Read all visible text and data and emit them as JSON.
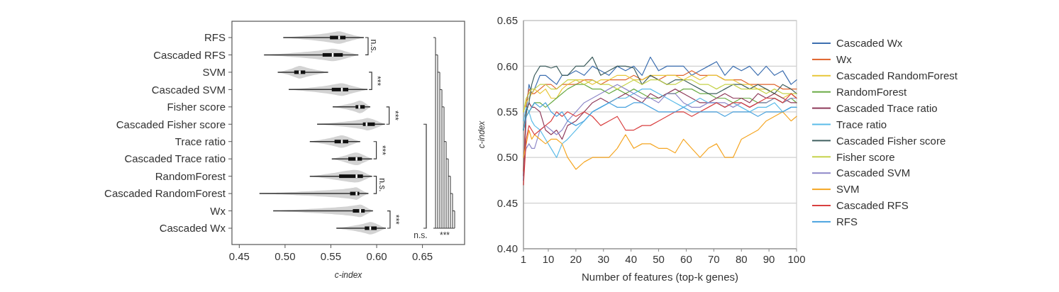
{
  "chart_data": [
    {
      "type": "box",
      "orientation": "horizontal",
      "xlabel": "c-index",
      "categories": [
        "RFS",
        "Cascaded RFS",
        "SVM",
        "Cascaded SVM",
        "Fisher score",
        "Cascaded Fisher score",
        "Trace ratio",
        "Cascaded Trace ratio",
        "RandomForest",
        "Cascaded RandomForest",
        "Wx",
        "Cascaded Wx"
      ],
      "boxes": [
        {
          "low": 0.498,
          "q1": 0.549,
          "median": 0.559,
          "q3": 0.566,
          "high": 0.586
        },
        {
          "low": 0.477,
          "q1": 0.541,
          "median": 0.552,
          "q3": 0.563,
          "high": 0.58
        },
        {
          "low": 0.492,
          "q1": 0.51,
          "median": 0.516,
          "q3": 0.522,
          "high": 0.547
        },
        {
          "low": 0.504,
          "q1": 0.551,
          "median": 0.562,
          "q3": 0.569,
          "high": 0.59
        },
        {
          "low": 0.552,
          "q1": 0.577,
          "median": 0.581,
          "q3": 0.587,
          "high": 0.593
        },
        {
          "low": 0.535,
          "q1": 0.585,
          "median": 0.589,
          "q3": 0.598,
          "high": 0.609
        },
        {
          "low": 0.527,
          "q1": 0.554,
          "median": 0.562,
          "q3": 0.569,
          "high": 0.582
        },
        {
          "low": 0.551,
          "q1": 0.569,
          "median": 0.578,
          "q3": 0.584,
          "high": 0.595
        },
        {
          "low": 0.527,
          "q1": 0.559,
          "median": 0.578,
          "q3": 0.585,
          "high": 0.595
        },
        {
          "low": 0.472,
          "q1": 0.571,
          "median": 0.578,
          "q3": 0.581,
          "high": 0.591
        },
        {
          "low": 0.487,
          "q1": 0.574,
          "median": 0.582,
          "q3": 0.587,
          "high": 0.596
        },
        {
          "low": 0.556,
          "q1": 0.587,
          "median": 0.593,
          "q3": 0.6,
          "high": 0.61
        }
      ],
      "color": "#111111",
      "xlim": [
        0.442,
        0.696
      ],
      "xticks": [
        0.45,
        {
          "value": 0.5,
          "label": "0.50"
        },
        0.55,
        {
          "value": 0.6,
          "label": "0.60"
        },
        0.65
      ],
      "annotations": [
        "n.s.",
        "***",
        "***",
        "***",
        "n.s.",
        "***",
        "n.s.",
        "***"
      ]
    },
    {
      "type": "line",
      "xlabel": "Number of features (top-k genes)",
      "ylabel": "c-index",
      "legend": "right",
      "grid": "y",
      "x": [
        1,
        2,
        3,
        4,
        5,
        7,
        9,
        11,
        13,
        15,
        17,
        20,
        23,
        26,
        29,
        32,
        35,
        38,
        41,
        44,
        47,
        50,
        53,
        56,
        59,
        62,
        65,
        68,
        71,
        74,
        77,
        80,
        83,
        86,
        89,
        92,
        95,
        98,
        100
      ],
      "xlim": [
        1,
        100
      ],
      "xticks": [
        1,
        10,
        20,
        30,
        40,
        50,
        60,
        70,
        80,
        90,
        100
      ],
      "ylim": [
        0.4,
        0.65
      ],
      "yticks": [
        {
          "value": 0.4,
          "label": "0.40"
        },
        0.45,
        {
          "value": 0.5,
          "label": "0.50"
        },
        0.55,
        {
          "value": 0.6,
          "label": "0.60"
        },
        0.65
      ],
      "series": [
        {
          "name": "Cascaded Wx",
          "color": "#3d6fb0",
          "values": [
            0.475,
            0.55,
            0.58,
            0.57,
            0.575,
            0.59,
            0.59,
            0.585,
            0.58,
            0.59,
            0.59,
            0.595,
            0.59,
            0.6,
            0.595,
            0.59,
            0.6,
            0.595,
            0.6,
            0.59,
            0.61,
            0.595,
            0.6,
            0.6,
            0.6,
            0.59,
            0.595,
            0.6,
            0.605,
            0.59,
            0.6,
            0.595,
            0.6,
            0.59,
            0.6,
            0.59,
            0.595,
            0.58,
            0.585
          ]
        },
        {
          "name": "Wx",
          "color": "#e0622a",
          "values": [
            0.485,
            0.56,
            0.575,
            0.57,
            0.57,
            0.575,
            0.58,
            0.58,
            0.575,
            0.58,
            0.58,
            0.58,
            0.585,
            0.585,
            0.58,
            0.585,
            0.585,
            0.585,
            0.59,
            0.585,
            0.59,
            0.585,
            0.59,
            0.59,
            0.59,
            0.595,
            0.59,
            0.59,
            0.59,
            0.585,
            0.585,
            0.585,
            0.58,
            0.58,
            0.58,
            0.58,
            0.575,
            0.575,
            0.575
          ]
        },
        {
          "name": "Cascaded RandomForest",
          "color": "#e8c73a",
          "values": [
            0.55,
            0.56,
            0.565,
            0.57,
            0.575,
            0.57,
            0.575,
            0.565,
            0.565,
            0.575,
            0.58,
            0.585,
            0.585,
            0.58,
            0.585,
            0.585,
            0.59,
            0.59,
            0.585,
            0.585,
            0.59,
            0.59,
            0.59,
            0.59,
            0.585,
            0.59,
            0.585,
            0.59,
            0.59,
            0.585,
            0.585,
            0.58,
            0.58,
            0.575,
            0.575,
            0.57,
            0.565,
            0.57,
            0.565
          ]
        },
        {
          "name": "RandomForest",
          "color": "#6aab45",
          "values": [
            0.53,
            0.545,
            0.55,
            0.555,
            0.56,
            0.56,
            0.555,
            0.56,
            0.565,
            0.57,
            0.575,
            0.58,
            0.58,
            0.575,
            0.575,
            0.57,
            0.575,
            0.57,
            0.575,
            0.57,
            0.565,
            0.565,
            0.57,
            0.57,
            0.575,
            0.575,
            0.57,
            0.57,
            0.565,
            0.565,
            0.56,
            0.565,
            0.565,
            0.56,
            0.56,
            0.565,
            0.56,
            0.565,
            0.56
          ]
        },
        {
          "name": "Cascaded Trace ratio",
          "color": "#8e3a5a",
          "values": [
            0.48,
            0.55,
            0.56,
            0.555,
            0.555,
            0.55,
            0.53,
            0.525,
            0.53,
            0.52,
            0.535,
            0.54,
            0.55,
            0.56,
            0.565,
            0.56,
            0.565,
            0.57,
            0.565,
            0.56,
            0.57,
            0.565,
            0.57,
            0.575,
            0.57,
            0.565,
            0.56,
            0.56,
            0.565,
            0.57,
            0.565,
            0.565,
            0.56,
            0.57,
            0.565,
            0.57,
            0.565,
            0.56,
            0.56
          ]
        },
        {
          "name": "Trace ratio",
          "color": "#5bbbe8",
          "values": [
            0.54,
            0.555,
            0.55,
            0.54,
            0.535,
            0.53,
            0.52,
            0.51,
            0.5,
            0.515,
            0.52,
            0.53,
            0.54,
            0.55,
            0.555,
            0.56,
            0.565,
            0.565,
            0.57,
            0.575,
            0.575,
            0.57,
            0.565,
            0.56,
            0.555,
            0.56,
            0.565,
            0.56,
            0.56,
            0.555,
            0.56,
            0.555,
            0.55,
            0.555,
            0.555,
            0.56,
            0.55,
            0.555,
            0.555
          ]
        },
        {
          "name": "Cascaded Fisher score",
          "color": "#3f5f5f",
          "values": [
            0.53,
            0.55,
            0.56,
            0.58,
            0.59,
            0.6,
            0.6,
            0.598,
            0.6,
            0.59,
            0.59,
            0.6,
            0.6,
            0.61,
            0.59,
            0.595,
            0.6,
            0.6,
            0.598,
            0.58,
            0.59,
            0.585,
            0.58,
            0.585,
            0.585,
            0.58,
            0.575,
            0.57,
            0.57,
            0.575,
            0.58,
            0.58,
            0.575,
            0.58,
            0.575,
            0.57,
            0.58,
            0.575,
            0.57
          ]
        },
        {
          "name": "Fisher score",
          "color": "#c5d24a",
          "values": [
            0.55,
            0.565,
            0.57,
            0.575,
            0.575,
            0.58,
            0.58,
            0.575,
            0.575,
            0.58,
            0.585,
            0.585,
            0.58,
            0.585,
            0.58,
            0.58,
            0.575,
            0.58,
            0.585,
            0.58,
            0.585,
            0.585,
            0.58,
            0.58,
            0.585,
            0.585,
            0.58,
            0.58,
            0.575,
            0.58,
            0.58,
            0.575,
            0.575,
            0.575,
            0.57,
            0.575,
            0.57,
            0.57,
            0.57
          ]
        },
        {
          "name": "Cascaded SVM",
          "color": "#8e88c8",
          "values": [
            0.5,
            0.51,
            0.515,
            0.51,
            0.51,
            0.53,
            0.535,
            0.53,
            0.525,
            0.53,
            0.54,
            0.55,
            0.56,
            0.565,
            0.57,
            0.575,
            0.58,
            0.575,
            0.57,
            0.565,
            0.565,
            0.56,
            0.57,
            0.57,
            0.56,
            0.555,
            0.555,
            0.56,
            0.56,
            0.56,
            0.555,
            0.56,
            0.555,
            0.56,
            0.56,
            0.565,
            0.56,
            0.565,
            0.565
          ]
        },
        {
          "name": "SVM",
          "color": "#f5a623",
          "values": [
            0.5,
            0.515,
            0.53,
            0.52,
            0.525,
            0.52,
            0.515,
            0.52,
            0.52,
            0.515,
            0.5,
            0.487,
            0.495,
            0.5,
            0.5,
            0.5,
            0.51,
            0.525,
            0.51,
            0.515,
            0.515,
            0.51,
            0.51,
            0.505,
            0.52,
            0.51,
            0.5,
            0.51,
            0.515,
            0.5,
            0.5,
            0.52,
            0.525,
            0.53,
            0.54,
            0.545,
            0.55,
            0.54,
            0.545
          ]
        },
        {
          "name": "Cascaded RFS",
          "color": "#d94040",
          "values": [
            0.47,
            0.52,
            0.535,
            0.53,
            0.525,
            0.53,
            0.535,
            0.54,
            0.55,
            0.545,
            0.55,
            0.545,
            0.55,
            0.545,
            0.535,
            0.54,
            0.545,
            0.53,
            0.53,
            0.535,
            0.535,
            0.54,
            0.545,
            0.55,
            0.55,
            0.545,
            0.55,
            0.555,
            0.56,
            0.555,
            0.56,
            0.56,
            0.555,
            0.56,
            0.565,
            0.565,
            0.56,
            0.57,
            0.565
          ]
        },
        {
          "name": "RFS",
          "color": "#4aa3df",
          "values": [
            0.53,
            0.545,
            0.55,
            0.555,
            0.56,
            0.555,
            0.56,
            0.55,
            0.545,
            0.55,
            0.54,
            0.535,
            0.54,
            0.55,
            0.555,
            0.56,
            0.555,
            0.555,
            0.56,
            0.56,
            0.555,
            0.55,
            0.55,
            0.55,
            0.555,
            0.55,
            0.55,
            0.55,
            0.55,
            0.545,
            0.55,
            0.55,
            0.55,
            0.545,
            0.55,
            0.55,
            0.55,
            0.555,
            0.555
          ]
        }
      ]
    }
  ]
}
